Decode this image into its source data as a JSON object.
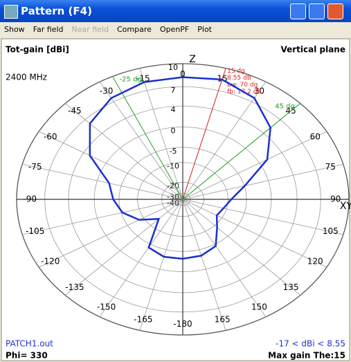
{
  "window": {
    "title": "Pattern   (F4)"
  },
  "menu": [
    {
      "label": "Show",
      "enabled": true
    },
    {
      "label": "Far field",
      "enabled": true
    },
    {
      "label": "Near field",
      "enabled": false
    },
    {
      "label": "Compare",
      "enabled": true
    },
    {
      "label": "OpenPF",
      "enabled": true
    },
    {
      "label": "Plot",
      "enabled": true
    }
  ],
  "chart_data": {
    "type": "polar",
    "quantity": "Tot-gain [dBi]",
    "frequency": "2400 MHz",
    "plane": "Vertical plane",
    "file": "PATCH1.out",
    "phi": "Phi= 330",
    "range": "-17 < dBi < 8.55",
    "max_gain": "Max gain The:15",
    "axis_top": "Z",
    "axis_side": "XY",
    "rscale": "arrl-log",
    "rlim": [
      -40,
      10
    ],
    "rticks": [
      10,
      7,
      4,
      0,
      -5,
      -10,
      -20,
      -30,
      -40
    ],
    "angle_ticks": [
      0,
      15,
      30,
      45,
      60,
      75,
      90,
      105,
      120,
      135,
      150,
      165,
      -180,
      -165,
      -150,
      -135,
      -120,
      -105,
      -90,
      -75,
      -60,
      -45,
      -30,
      -15
    ],
    "series": [
      {
        "color": "#1a2fd0",
        "theta": [
          0,
          15,
          30,
          45,
          60,
          75,
          90,
          105,
          120,
          135,
          150,
          165,
          180,
          -165,
          -150,
          -135,
          -120,
          -105,
          -90,
          -75,
          -60,
          -45,
          -30,
          -15
        ],
        "values": [
          8.3,
          8.55,
          7.6,
          5.3,
          1.5,
          -4.9,
          -9,
          -11,
          -12,
          -9,
          -4.5,
          -3.3,
          -3,
          -3,
          -4,
          -14,
          -8.5,
          -5.3,
          -3.7,
          -2.3,
          3,
          6.2,
          7.6,
          8.2
        ]
      }
    ],
    "beam": {
      "angle": 15,
      "color": "#e02020",
      "labels": [
        "15 dg",
        "8.55 dB",
        "bw: 70 dg",
        "fb: 17.2 dB"
      ]
    },
    "beamwidth_edges": [
      {
        "angle": -25,
        "label": "-25 dg"
      },
      {
        "angle": 45,
        "label": "45 dg"
      }
    ],
    "beamwidth_color": "#20a020"
  }
}
